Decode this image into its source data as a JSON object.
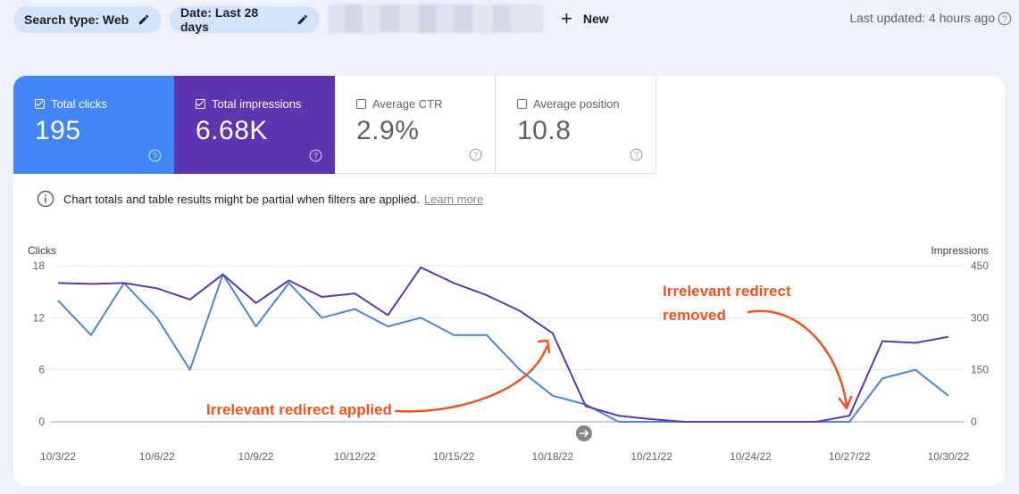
{
  "filters": {
    "search_type": "Search type: Web",
    "date": "Date: Last 28 days",
    "new_label": "New",
    "last_updated": "Last updated: 4 hours ago"
  },
  "metrics": [
    {
      "label": "Total clicks",
      "value": "195",
      "checked": true,
      "color": "#4285f4"
    },
    {
      "label": "Total impressions",
      "value": "6.68K",
      "checked": true,
      "color": "#5e35b1"
    },
    {
      "label": "Average CTR",
      "value": "2.9%",
      "checked": false
    },
    {
      "label": "Average position",
      "value": "10.8",
      "checked": false
    }
  ],
  "notice": {
    "text": "Chart totals and table results might be partial when filters are applied.",
    "link": "Learn more"
  },
  "chart_data": {
    "type": "line",
    "left_axis_label": "Clicks",
    "right_axis_label": "Impressions",
    "left_ylim": [
      0,
      18
    ],
    "right_ylim": [
      0,
      450
    ],
    "left_ticks": [
      "0",
      "6",
      "12",
      "18"
    ],
    "right_ticks": [
      "0",
      "150",
      "300",
      "450"
    ],
    "x_tick_labels": [
      "10/3/22",
      "10/6/22",
      "10/9/22",
      "10/12/22",
      "10/15/22",
      "10/18/22",
      "10/21/22",
      "10/24/22",
      "10/27/22",
      "10/30/22"
    ],
    "x": [
      "10/3/22",
      "10/4/22",
      "10/5/22",
      "10/6/22",
      "10/7/22",
      "10/8/22",
      "10/9/22",
      "10/10/22",
      "10/11/22",
      "10/12/22",
      "10/13/22",
      "10/14/22",
      "10/15/22",
      "10/16/22",
      "10/17/22",
      "10/18/22",
      "10/19/22",
      "10/20/22",
      "10/21/22",
      "10/22/22",
      "10/23/22",
      "10/24/22",
      "10/25/22",
      "10/26/22",
      "10/27/22",
      "10/28/22",
      "10/29/22",
      "10/30/22"
    ],
    "series": [
      {
        "name": "Total clicks",
        "axis": "left",
        "color": "#4a86d8",
        "values": [
          14,
          10,
          16,
          12,
          6,
          17,
          11,
          16,
          12,
          13,
          11,
          12,
          10,
          10,
          6,
          3,
          2,
          0,
          0,
          0,
          0,
          0,
          0,
          0,
          0,
          5,
          6,
          3
        ]
      },
      {
        "name": "Total impressions",
        "axis": "left",
        "color": "#5e35b1",
        "values": [
          16,
          15.9,
          16,
          15.4,
          14.1,
          17,
          13.7,
          16.3,
          14.4,
          14.8,
          12.3,
          17.8,
          16,
          14.6,
          12.8,
          10.2,
          1.8,
          0.7,
          0.3,
          0,
          0,
          0,
          0,
          0,
          0.7,
          9.3,
          9.1,
          9.8
        ]
      }
    ],
    "annotations": [
      {
        "text": "Irrelevant redirect applied"
      },
      {
        "text": "Irrelevant redirect",
        "text2": "removed"
      }
    ]
  }
}
